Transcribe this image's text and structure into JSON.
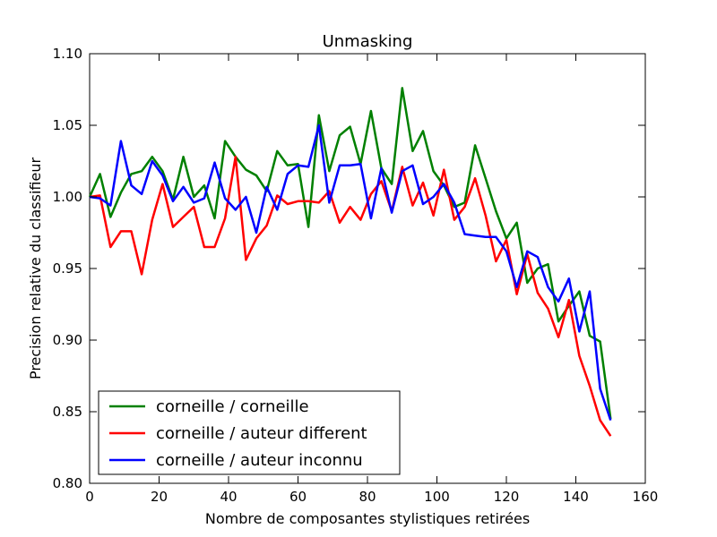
{
  "chart_data": {
    "type": "line",
    "title": "Unmasking",
    "xlabel": "Nombre de composantes stylistiques retirées",
    "ylabel": "Precision relative du classifieur",
    "xlim": [
      0,
      160
    ],
    "ylim": [
      0.8,
      1.1
    ],
    "xticks": [
      0,
      20,
      40,
      60,
      80,
      100,
      120,
      140,
      160
    ],
    "yticks": [
      0.8,
      0.85,
      0.9,
      0.95,
      1.0,
      1.05,
      1.1
    ],
    "xtick_labels": [
      "0",
      "20",
      "40",
      "60",
      "80",
      "100",
      "120",
      "140",
      "160"
    ],
    "ytick_labels": [
      "0.80",
      "0.85",
      "0.90",
      "0.95",
      "1.00",
      "1.05",
      "1.10"
    ],
    "grid": false,
    "legend_position": "lower-left",
    "x": [
      0,
      3,
      6,
      9,
      12,
      15,
      18,
      21,
      24,
      27,
      30,
      33,
      36,
      39,
      42,
      45,
      48,
      51,
      54,
      57,
      60,
      63,
      66,
      69,
      72,
      75,
      78,
      81,
      84,
      87,
      90,
      93,
      96,
      99,
      102,
      105,
      108,
      111,
      114,
      117,
      120,
      123,
      126,
      129,
      132,
      135,
      138,
      141,
      144,
      147,
      150
    ],
    "series": [
      {
        "name": "corneille / corneille",
        "color": "#008000",
        "values": [
          1.0,
          1.016,
          0.986,
          1.003,
          1.016,
          1.018,
          1.028,
          1.018,
          0.998,
          1.028,
          1.0,
          1.008,
          0.985,
          1.039,
          1.028,
          1.019,
          1.015,
          1.004,
          1.032,
          1.022,
          1.023,
          0.979,
          1.057,
          1.018,
          1.043,
          1.049,
          1.023,
          1.06,
          1.02,
          1.009,
          1.076,
          1.032,
          1.046,
          1.018,
          1.008,
          0.993,
          0.996,
          1.036,
          1.013,
          0.99,
          0.971,
          0.982,
          0.94,
          0.95,
          0.953,
          0.913,
          0.924,
          0.934,
          0.903,
          0.899,
          0.845
        ]
      },
      {
        "name": "corneille / auteur different",
        "color": "#ff0000",
        "values": [
          1.0,
          1.001,
          0.965,
          0.976,
          0.976,
          0.946,
          0.984,
          1.009,
          0.979,
          0.986,
          0.993,
          0.965,
          0.965,
          0.985,
          1.028,
          0.956,
          0.971,
          0.98,
          1.001,
          0.995,
          0.997,
          0.997,
          0.996,
          1.004,
          0.982,
          0.993,
          0.984,
          1.002,
          1.011,
          0.99,
          1.021,
          0.994,
          1.01,
          0.987,
          1.019,
          0.984,
          0.993,
          1.013,
          0.987,
          0.955,
          0.97,
          0.932,
          0.96,
          0.933,
          0.922,
          0.902,
          0.928,
          0.889,
          0.868,
          0.844,
          0.833
        ]
      },
      {
        "name": "corneille / auteur inconnu",
        "color": "#0000ff",
        "values": [
          1.0,
          0.999,
          0.994,
          1.039,
          1.008,
          1.002,
          1.025,
          1.015,
          0.997,
          1.007,
          0.996,
          0.999,
          1.024,
          0.999,
          0.991,
          1.0,
          0.975,
          1.007,
          0.991,
          1.016,
          1.022,
          1.021,
          1.05,
          0.996,
          1.022,
          1.022,
          1.023,
          0.985,
          1.02,
          0.989,
          1.018,
          1.022,
          0.995,
          1.0,
          1.009,
          0.996,
          0.974,
          0.973,
          0.972,
          0.972,
          0.962,
          0.937,
          0.962,
          0.958,
          0.937,
          0.927,
          0.943,
          0.906,
          0.934,
          0.866,
          0.844
        ]
      }
    ]
  }
}
